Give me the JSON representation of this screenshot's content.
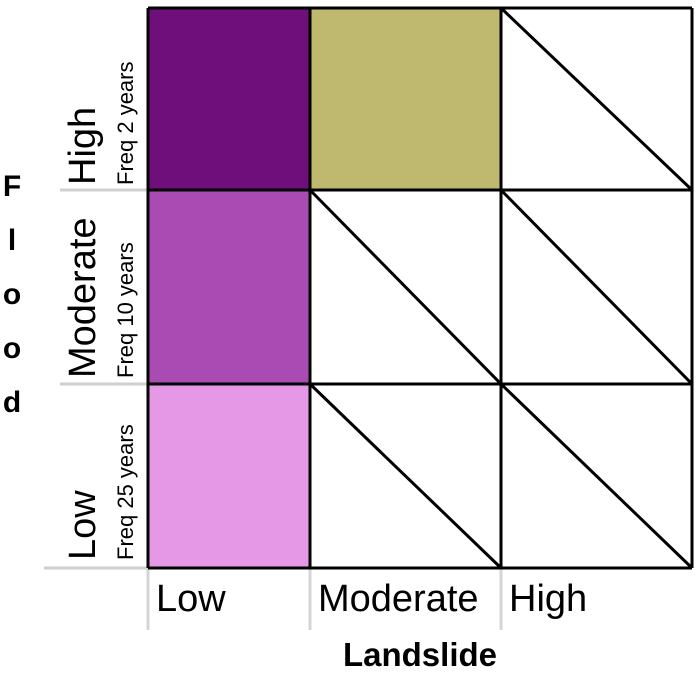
{
  "axes": {
    "x_title": "Landslide",
    "y_title_letters": [
      "F",
      "l",
      "o",
      "o",
      "d"
    ]
  },
  "columns": [
    {
      "label": "Low"
    },
    {
      "label": "Moderate"
    },
    {
      "label": "High"
    }
  ],
  "rows": [
    {
      "level": "High",
      "freq": "Freq 2 years"
    },
    {
      "level": "Moderate",
      "freq": "Freq 10 years"
    },
    {
      "level": "Low",
      "freq": "Freq 25 years"
    }
  ],
  "cells": [
    [
      {
        "filled": true,
        "color": "#6e0f7c"
      },
      {
        "filled": true,
        "color": "#bfb86f"
      },
      {
        "filled": false
      }
    ],
    [
      {
        "filled": true,
        "color": "#a94bb2"
      },
      {
        "filled": false
      },
      {
        "filled": false
      }
    ],
    [
      {
        "filled": true,
        "color": "#e598e5"
      },
      {
        "filled": false
      },
      {
        "filled": false
      }
    ]
  ]
}
